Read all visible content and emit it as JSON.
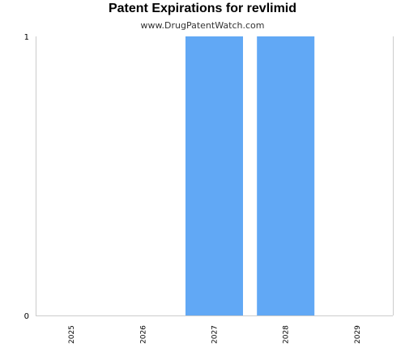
{
  "chart_data": {
    "type": "bar",
    "title": "Patent Expirations for revlimid",
    "subtitle": "www.DrugPatentWatch.com",
    "categories": [
      "2025",
      "2026",
      "2027",
      "2028",
      "2029"
    ],
    "values": [
      0,
      0,
      1,
      1,
      0
    ],
    "xlabel": "",
    "ylabel": "",
    "ylim": [
      0,
      1
    ],
    "yticks": [
      "0",
      "1"
    ],
    "grid": false,
    "legend": "none",
    "bar_color": "#61a8f5",
    "axis_color": "#cccccc"
  }
}
